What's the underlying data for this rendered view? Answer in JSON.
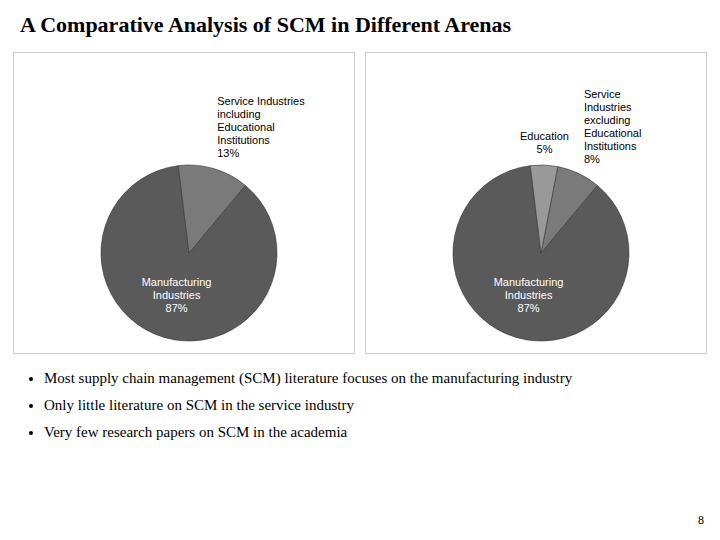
{
  "chart_data": [
    {
      "type": "pie",
      "title": "A Comparative Analysis of SCM in Different Arenas",
      "categories": [
        "Manufacturing\nIndustries",
        "Service Industries\nincluding\nEducational\nInstitutions"
      ],
      "values": [
        87,
        13
      ],
      "value_labels": [
        "87%",
        "13%"
      ],
      "data_labels": true,
      "colors": [
        "#5a5a5a",
        "#7a7a7a"
      ],
      "annotations": [
        "Most supply chain management (SCM) literature focuses on the manufacturing industry",
        "Only little literature on SCM in the service industry",
        "Very few research papers on SCM in the academia",
        "8"
      ]
    },
    {
      "type": "pie",
      "categories": [
        "Manufacturing\nIndustries",
        "Service\nIndustries\nexcluding\nEducational\nInstitutions",
        "Education"
      ],
      "values": [
        87,
        8,
        5
      ],
      "value_labels": [
        "87%",
        "8%",
        "5%"
      ],
      "data_labels": true,
      "colors": [
        "#5a5a5a",
        "#7a7a7a",
        "#999999"
      ]
    }
  ]
}
